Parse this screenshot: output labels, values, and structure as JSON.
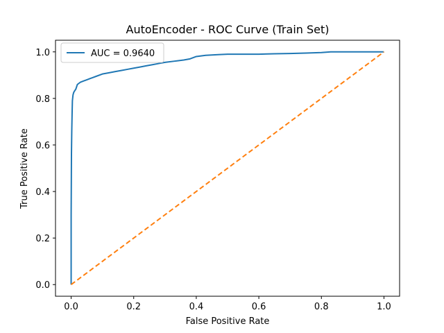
{
  "chart_data": {
    "type": "line",
    "title": "AutoEncoder - ROC Curve (Train Set)",
    "xlabel": "False Positive Rate",
    "ylabel": "True Positive Rate",
    "xlim": [
      -0.05,
      1.05
    ],
    "ylim": [
      -0.05,
      1.05
    ],
    "x_ticks": [
      0.0,
      0.2,
      0.4,
      0.6,
      0.8,
      1.0
    ],
    "y_ticks": [
      0.0,
      0.2,
      0.4,
      0.6,
      0.8,
      1.0
    ],
    "x_tick_labels": [
      "0.0",
      "0.2",
      "0.4",
      "0.6",
      "0.8",
      "1.0"
    ],
    "y_tick_labels": [
      "0.0",
      "0.2",
      "0.4",
      "0.6",
      "0.8",
      "1.0"
    ],
    "grid": false,
    "legend": {
      "placement": "top-left",
      "entries": [
        "AUC = 0.9640"
      ]
    },
    "series": [
      {
        "name": "AUC = 0.9640",
        "color": "#1f77b4",
        "style": "solid",
        "x": [
          0.0,
          0.0,
          0.001,
          0.002,
          0.003,
          0.004,
          0.006,
          0.008,
          0.01,
          0.015,
          0.02,
          0.03,
          0.04,
          0.05,
          0.06,
          0.07,
          0.08,
          0.1,
          0.12,
          0.14,
          0.16,
          0.18,
          0.2,
          0.22,
          0.24,
          0.26,
          0.28,
          0.3,
          0.33,
          0.36,
          0.38,
          0.4,
          0.43,
          0.47,
          0.5,
          0.55,
          0.6,
          0.65,
          0.7,
          0.75,
          0.8,
          0.83,
          0.87,
          0.9,
          0.95,
          1.0
        ],
        "y": [
          0.0,
          0.3,
          0.56,
          0.66,
          0.73,
          0.79,
          0.815,
          0.825,
          0.83,
          0.84,
          0.86,
          0.87,
          0.875,
          0.88,
          0.885,
          0.89,
          0.895,
          0.905,
          0.91,
          0.915,
          0.92,
          0.925,
          0.93,
          0.935,
          0.94,
          0.945,
          0.95,
          0.955,
          0.96,
          0.965,
          0.97,
          0.98,
          0.985,
          0.988,
          0.99,
          0.99,
          0.99,
          0.992,
          0.993,
          0.995,
          0.997,
          1.0,
          1.0,
          1.0,
          1.0,
          1.0
        ]
      },
      {
        "name": "",
        "color": "#ff7f0e",
        "style": "dashed",
        "x": [
          0.0,
          1.0
        ],
        "y": [
          0.0,
          1.0
        ]
      }
    ]
  }
}
